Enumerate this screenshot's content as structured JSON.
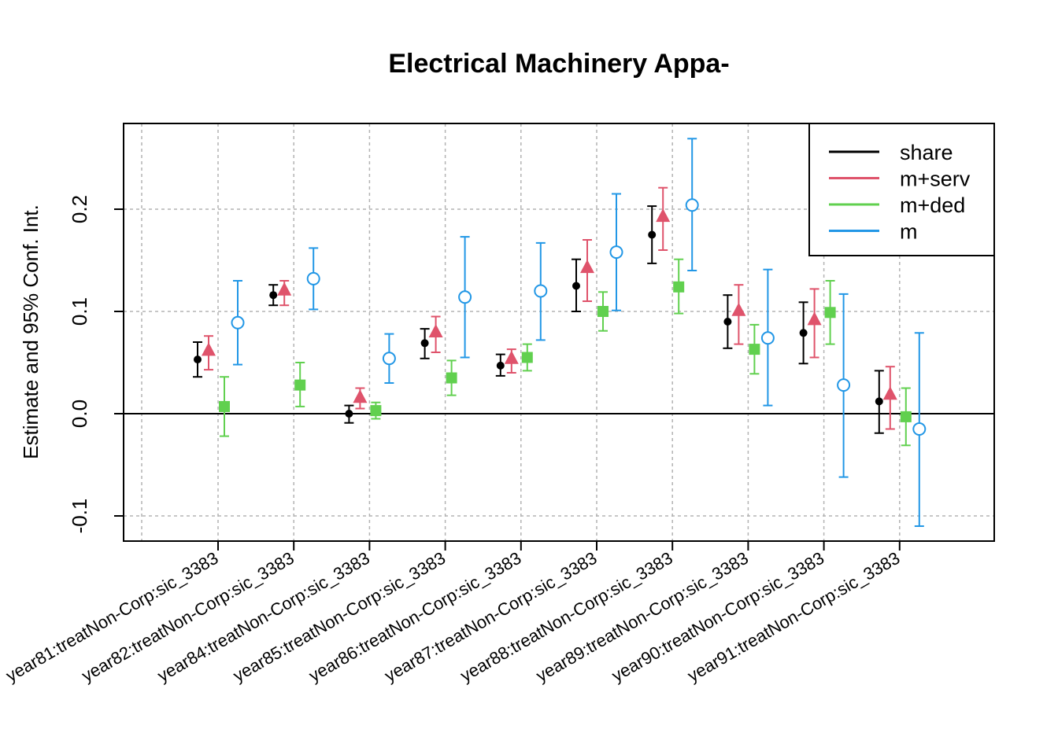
{
  "chart_data": {
    "type": "scatter",
    "title": "Electrical Machinery Appa-",
    "xlabel": "",
    "ylabel": "Estimate and 95% Conf. Int.",
    "ylim": [
      -0.12,
      0.29
    ],
    "yticks": [
      -0.1,
      0.0,
      0.1,
      0.2
    ],
    "ytick_labels": [
      "-0.1",
      "0.0",
      "0.1",
      "0.2"
    ],
    "grid": true,
    "reference_line": 0,
    "legend_position": "top-right",
    "categories": [
      "year81:treatNon-Corp:sic_3383",
      "year82:treatNon-Corp:sic_3383",
      "year84:treatNon-Corp:sic_3383",
      "year85:treatNon-Corp:sic_3383",
      "year86:treatNon-Corp:sic_3383",
      "year87:treatNon-Corp:sic_3383",
      "year88:treatNon-Corp:sic_3383",
      "year89:treatNon-Corp:sic_3383",
      "year90:treatNon-Corp:sic_3383",
      "year91:treatNon-Corp:sic_3383"
    ],
    "series": [
      {
        "name": "share",
        "color": "#000000",
        "marker": "filled-circle",
        "estimate": [
          0.053,
          0.116,
          0.0,
          0.069,
          0.047,
          0.125,
          0.175,
          0.09,
          0.079,
          0.012
        ],
        "lower": [
          0.036,
          0.106,
          -0.009,
          0.054,
          0.037,
          0.1,
          0.147,
          0.064,
          0.049,
          -0.019
        ],
        "upper": [
          0.07,
          0.126,
          0.008,
          0.083,
          0.058,
          0.151,
          0.203,
          0.116,
          0.109,
          0.042
        ]
      },
      {
        "name": "m+serv",
        "color": "#DF536B",
        "marker": "filled-triangle",
        "estimate": [
          0.062,
          0.121,
          0.016,
          0.08,
          0.054,
          0.143,
          0.193,
          0.101,
          0.092,
          0.019
        ],
        "lower": [
          0.043,
          0.106,
          0.005,
          0.06,
          0.04,
          0.11,
          0.16,
          0.068,
          0.055,
          -0.015
        ],
        "upper": [
          0.076,
          0.13,
          0.025,
          0.095,
          0.063,
          0.17,
          0.221,
          0.126,
          0.122,
          0.046
        ]
      },
      {
        "name": "m+ded",
        "color": "#61D04F",
        "marker": "filled-square",
        "estimate": [
          0.007,
          0.028,
          0.003,
          0.035,
          0.055,
          0.1,
          0.124,
          0.063,
          0.099,
          -0.003
        ],
        "lower": [
          -0.022,
          0.007,
          -0.005,
          0.018,
          0.042,
          0.081,
          0.098,
          0.039,
          0.068,
          -0.031
        ],
        "upper": [
          0.036,
          0.05,
          0.011,
          0.052,
          0.068,
          0.119,
          0.151,
          0.087,
          0.13,
          0.025
        ]
      },
      {
        "name": "m",
        "color": "#2297E6",
        "marker": "open-circle",
        "estimate": [
          0.089,
          0.132,
          0.054,
          0.114,
          0.12,
          0.158,
          0.204,
          0.074,
          0.028,
          -0.015
        ],
        "lower": [
          0.048,
          0.102,
          0.03,
          0.055,
          0.072,
          0.101,
          0.14,
          0.008,
          -0.062,
          -0.11
        ],
        "upper": [
          0.13,
          0.162,
          0.078,
          0.173,
          0.167,
          0.215,
          0.269,
          0.141,
          0.117,
          0.079
        ]
      }
    ]
  }
}
